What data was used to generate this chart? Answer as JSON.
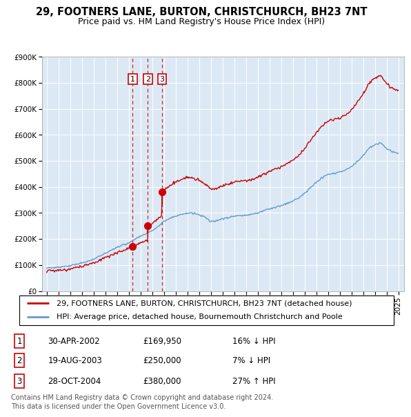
{
  "title": "29, FOOTNERS LANE, BURTON, CHRISTCHURCH, BH23 7NT",
  "subtitle": "Price paid vs. HM Land Registry's House Price Index (HPI)",
  "background_color": "#dce9f5",
  "plot_bg_color": "#dce9f5",
  "ylim": [
    0,
    900000
  ],
  "yticks": [
    0,
    100000,
    200000,
    300000,
    400000,
    500000,
    600000,
    700000,
    800000,
    900000
  ],
  "ytick_labels": [
    "£0",
    "£100K",
    "£200K",
    "£300K",
    "£400K",
    "£500K",
    "£600K",
    "£700K",
    "£800K",
    "£900K"
  ],
  "xlim_start": 1994.6,
  "xlim_end": 2025.5,
  "sale_dates": [
    2002.33,
    2003.63,
    2004.83
  ],
  "sale_prices": [
    169950,
    250000,
    380000
  ],
  "sale_labels": [
    "1",
    "2",
    "3"
  ],
  "vline_color": "#cc0000",
  "point_color": "#cc0000",
  "red_line_color": "#cc0000",
  "blue_line_color": "#6699cc",
  "legend_entries": [
    "29, FOOTNERS LANE, BURTON, CHRISTCHURCH, BH23 7NT (detached house)",
    "HPI: Average price, detached house, Bournemouth Christchurch and Poole"
  ],
  "table_rows": [
    [
      "1",
      "30-APR-2002",
      "£169,950",
      "16% ↓ HPI"
    ],
    [
      "2",
      "19-AUG-2003",
      "£250,000",
      "7% ↓ HPI"
    ],
    [
      "3",
      "28-OCT-2004",
      "£380,000",
      "27% ↑ HPI"
    ]
  ],
  "footnote": "Contains HM Land Registry data © Crown copyright and database right 2024.\nThis data is licensed under the Open Government Licence v3.0.",
  "title_fontsize": 10.5,
  "subtitle_fontsize": 9,
  "tick_fontsize": 7.5,
  "legend_fontsize": 8,
  "table_fontsize": 8.5,
  "footnote_fontsize": 7
}
